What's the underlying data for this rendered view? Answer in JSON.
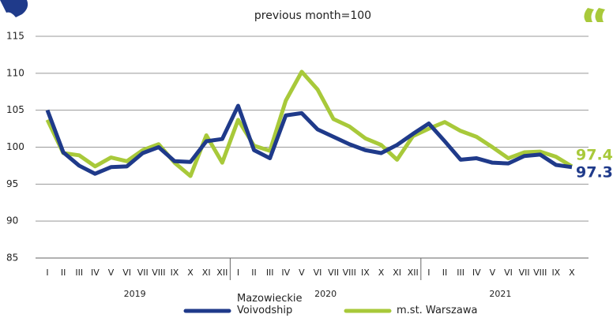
{
  "chart_data": {
    "type": "line",
    "title": "previous month=100",
    "categories": [
      "I",
      "II",
      "III",
      "IV",
      "V",
      "VI",
      "VII",
      "VIII",
      "IX",
      "X",
      "XI",
      "XII",
      "I",
      "II",
      "III",
      "IV",
      "V",
      "VI",
      "VII",
      "VIII",
      "IX",
      "X",
      "XI",
      "XII",
      "I",
      "II",
      "III",
      "IV",
      "V",
      "VI",
      "VII",
      "VIII",
      "IX",
      "X"
    ],
    "year_labels": [
      "2019",
      "2020",
      "2021"
    ],
    "series": [
      {
        "name": "Mazowieckie Voivodship",
        "color": "#1f3a8a",
        "values": [
          105.0,
          99.3,
          97.5,
          96.4,
          97.3,
          97.4,
          99.2,
          100.0,
          98.1,
          98.0,
          100.8,
          101.1,
          105.6,
          99.6,
          98.5,
          104.3,
          104.6,
          102.4,
          101.4,
          100.4,
          99.6,
          99.2,
          100.3,
          101.8,
          103.2,
          100.8,
          98.3,
          98.5,
          97.9,
          97.8,
          98.8,
          99.0,
          97.6,
          97.3
        ]
      },
      {
        "name": "m.st. Warszawa",
        "color": "#a8c93a",
        "values": [
          103.7,
          99.2,
          98.9,
          97.4,
          98.6,
          98.1,
          99.6,
          100.4,
          97.9,
          96.1,
          101.6,
          97.9,
          103.7,
          100.2,
          99.5,
          106.3,
          110.2,
          107.8,
          103.8,
          102.8,
          101.2,
          100.3,
          98.3,
          101.5,
          102.5,
          103.4,
          102.2,
          101.4,
          100.0,
          98.5,
          99.3,
          99.4,
          98.7,
          97.4
        ]
      }
    ],
    "ylim": [
      85,
      115
    ],
    "yticks": [
      85,
      90,
      95,
      100,
      105,
      110,
      115
    ],
    "grid": true
  }
}
